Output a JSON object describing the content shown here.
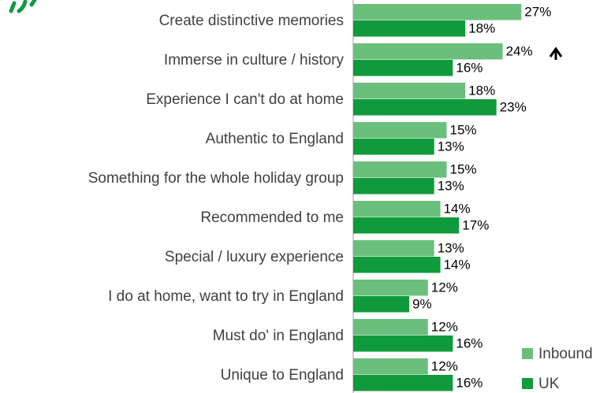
{
  "chart_data": {
    "type": "bar",
    "orientation": "horizontal",
    "categories": [
      "Create distinctive memories",
      "Immerse in culture / history",
      "Experience I can't do at home",
      "Authentic to England",
      "Something for the whole holiday group",
      "Recommended to me",
      "Special / luxury experience",
      "I do at home, want to try in England",
      "Must do' in England",
      "Unique to England"
    ],
    "series": [
      {
        "name": "Inbound",
        "color": "#6bbf7c",
        "values": [
          27,
          24,
          18,
          15,
          15,
          14,
          13,
          12,
          12,
          12
        ],
        "value_labels": [
          "27%",
          "24%",
          "18%",
          "15%",
          "15%",
          "14%",
          "13%",
          "12%",
          "12%",
          "12%"
        ]
      },
      {
        "name": "UK",
        "color": "#0f9a3c",
        "values": [
          18,
          16,
          23,
          13,
          13,
          17,
          14,
          9,
          16,
          16
        ],
        "value_labels": [
          "18%",
          "16%",
          "23%",
          "13%",
          "13%",
          "17%",
          "14%",
          "9%",
          "16%",
          "16%"
        ]
      }
    ],
    "legend": "bottom-right"
  }
}
